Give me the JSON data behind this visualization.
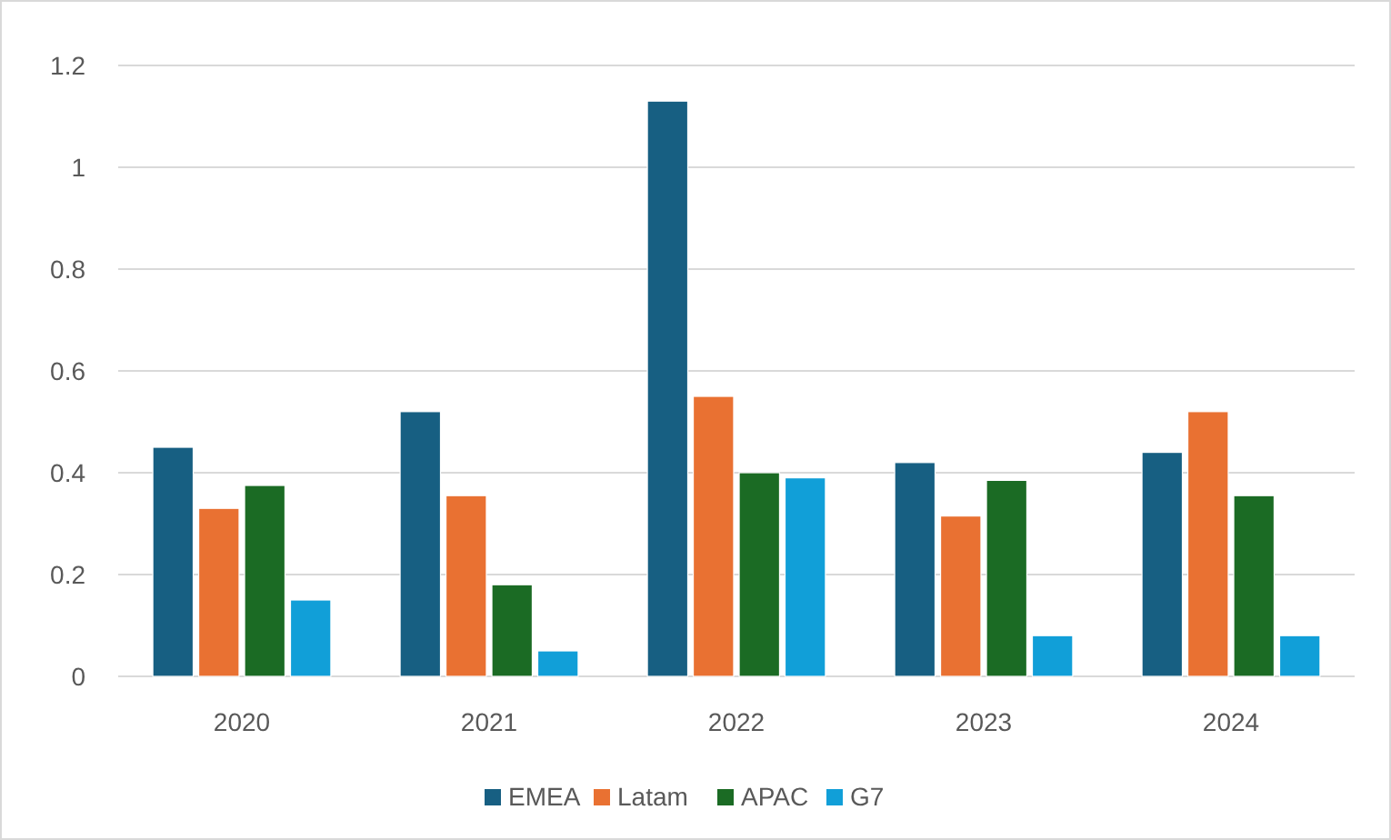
{
  "chart_data": {
    "type": "bar",
    "categories": [
      "2020",
      "2021",
      "2022",
      "2023",
      "2024"
    ],
    "series": [
      {
        "name": "EMEA",
        "color": "#175f82",
        "values": [
          0.45,
          0.52,
          1.13,
          0.42,
          0.44
        ]
      },
      {
        "name": "Latam",
        "color": "#e97132",
        "values": [
          0.33,
          0.355,
          0.55,
          0.315,
          0.52
        ]
      },
      {
        "name": "APAC",
        "color": "#1b6b24",
        "values": [
          0.375,
          0.18,
          0.4,
          0.385,
          0.355
        ]
      },
      {
        "name": "G7",
        "color": "#119fd8",
        "values": [
          0.15,
          0.05,
          0.39,
          0.08,
          0.08
        ]
      }
    ],
    "ylim": [
      0,
      1.2
    ],
    "yticks": [
      0,
      {
        "value": 0.2,
        "label": "0.2"
      },
      {
        "value": 0.4,
        "label": "0.4"
      },
      {
        "value": 0.6,
        "label": "0.6"
      },
      {
        "value": 0.8,
        "label": "0.8"
      },
      1,
      {
        "value": 1.2,
        "label": "1.2"
      }
    ],
    "grid": "y",
    "legend": "bottom"
  }
}
